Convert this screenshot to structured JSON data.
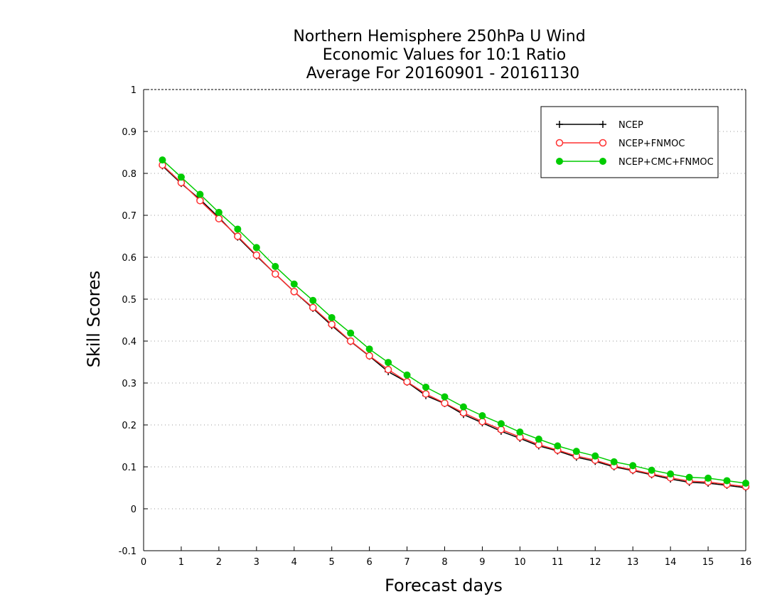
{
  "chart_data": {
    "type": "line",
    "title": [
      "Northern Hemisphere 250hPa U Wind",
      "Economic Values for 10:1 Ratio",
      "Average For 20160901 - 20161130"
    ],
    "xlabel": "Forecast days",
    "ylabel": "Skill Scores",
    "xlim": [
      0,
      16
    ],
    "ylim": [
      -0.1,
      1
    ],
    "xticks": [
      0,
      1,
      2,
      3,
      4,
      5,
      6,
      7,
      8,
      9,
      10,
      11,
      12,
      13,
      14,
      15,
      16
    ],
    "yticks": [
      -0.1,
      0,
      0.1,
      0.2,
      0.3,
      0.4,
      0.5,
      0.6,
      0.7,
      0.8,
      0.9,
      1
    ],
    "ytick_labels": [
      "-0.1",
      "0",
      "0.1",
      "0.2",
      "0.3",
      "0.4",
      "0.5",
      "0.6",
      "0.7",
      "0.8",
      "0.9",
      "1"
    ],
    "grid": true,
    "legend_position": "top-right",
    "x": [
      0.5,
      1,
      1.5,
      2,
      2.5,
      3,
      3.5,
      4,
      4.5,
      5,
      5.5,
      6,
      6.5,
      7,
      7.5,
      8,
      8.5,
      9,
      9.5,
      10,
      10.5,
      11,
      11.5,
      12,
      12.5,
      13,
      13.5,
      14,
      14.5,
      15,
      15.5,
      16
    ],
    "series": [
      {
        "name": "NCEP",
        "color": "#000000",
        "marker": "plus",
        "values": [
          0.818,
          0.776,
          0.738,
          0.695,
          0.648,
          0.603,
          0.56,
          0.518,
          0.478,
          0.437,
          0.399,
          0.364,
          0.327,
          0.302,
          0.27,
          0.251,
          0.225,
          0.205,
          0.185,
          0.168,
          0.15,
          0.138,
          0.123,
          0.113,
          0.1,
          0.091,
          0.081,
          0.071,
          0.063,
          0.061,
          0.056,
          0.05
        ]
      },
      {
        "name": "NCEP+FNMOC",
        "color": "#ff3030",
        "marker": "open-circle",
        "values": [
          0.82,
          0.778,
          0.735,
          0.692,
          0.65,
          0.605,
          0.56,
          0.518,
          0.48,
          0.44,
          0.4,
          0.365,
          0.332,
          0.303,
          0.274,
          0.252,
          0.229,
          0.208,
          0.189,
          0.171,
          0.153,
          0.14,
          0.126,
          0.116,
          0.102,
          0.093,
          0.083,
          0.074,
          0.066,
          0.064,
          0.058,
          0.053
        ]
      },
      {
        "name": "NCEP+CMC+FNMOC",
        "color": "#00cc00",
        "marker": "filled-circle",
        "values": [
          0.832,
          0.791,
          0.75,
          0.707,
          0.667,
          0.623,
          0.578,
          0.536,
          0.497,
          0.456,
          0.419,
          0.381,
          0.349,
          0.319,
          0.29,
          0.267,
          0.243,
          0.222,
          0.203,
          0.183,
          0.166,
          0.15,
          0.137,
          0.126,
          0.112,
          0.103,
          0.092,
          0.083,
          0.075,
          0.073,
          0.067,
          0.061
        ]
      }
    ]
  }
}
